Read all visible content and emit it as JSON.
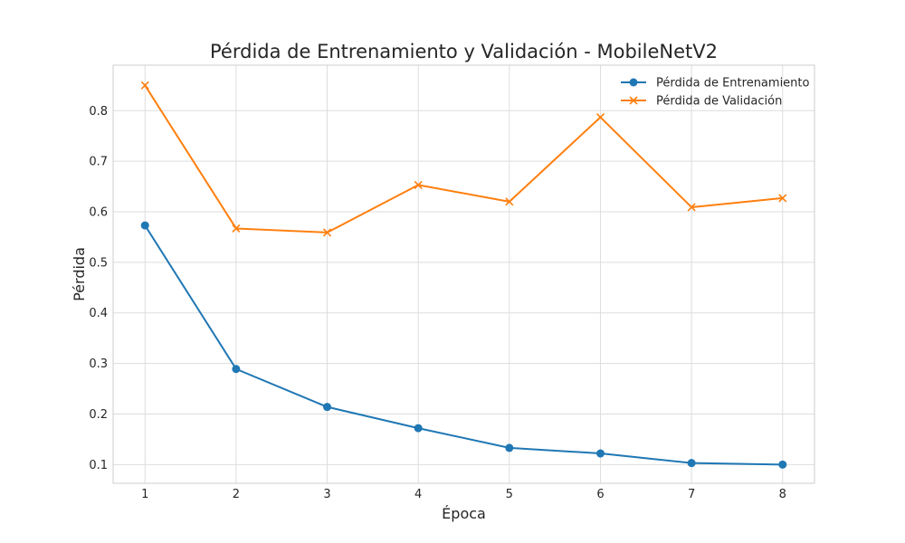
{
  "chart_data": {
    "type": "line",
    "title": "Pérdida de Entrenamiento y Validación - MobileNetV2",
    "xlabel": "Época",
    "ylabel": "Pérdida",
    "x": [
      1,
      2,
      3,
      4,
      5,
      6,
      7,
      8
    ],
    "xlim": [
      0.65,
      8.35
    ],
    "ylim": [
      0.063,
      0.89
    ],
    "xticks": [
      "1",
      "2",
      "3",
      "4",
      "5",
      "6",
      "7",
      "8"
    ],
    "yticks": [
      "0.1",
      "0.2",
      "0.3",
      "0.4",
      "0.5",
      "0.6",
      "0.7",
      "0.8"
    ],
    "grid": true,
    "legend_position": "top-right",
    "series": [
      {
        "name": "Pérdida de Entrenamiento",
        "values": [
          0.573,
          0.289,
          0.214,
          0.172,
          0.133,
          0.122,
          0.103,
          0.1
        ],
        "color": "#1f77b4",
        "marker": "circle"
      },
      {
        "name": "Pérdida de Validación",
        "values": [
          0.85,
          0.567,
          0.559,
          0.653,
          0.62,
          0.787,
          0.609,
          0.627
        ],
        "color": "#ff7f0e",
        "marker": "x"
      }
    ]
  }
}
